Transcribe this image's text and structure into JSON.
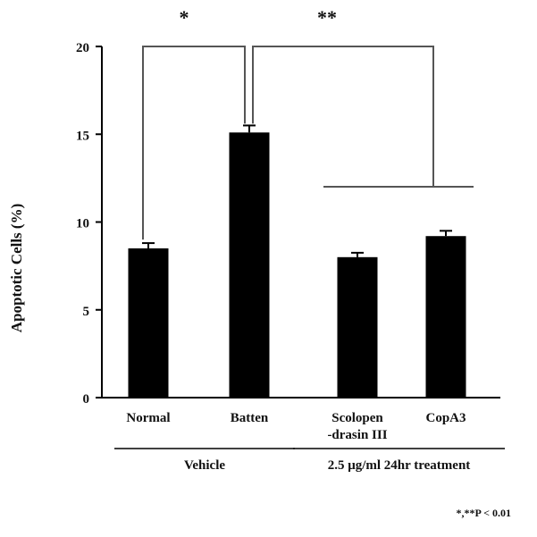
{
  "chart_data": {
    "type": "bar",
    "categories": [
      "Normal",
      "Batten",
      "Scolopen\n-drasin III",
      "CopA3"
    ],
    "values": [
      8.5,
      15.1,
      8.0,
      9.2
    ],
    "errors": [
      0.3,
      0.4,
      0.25,
      0.3
    ],
    "ylabel": "Apoptotic Cells (%)",
    "xlabel": "",
    "ylim": [
      0,
      20
    ],
    "yticks": [
      0,
      5,
      10,
      15,
      20
    ],
    "bar_color": "#000000",
    "group_labels": [
      {
        "label": "Vehicle",
        "categories": [
          "Normal",
          "Batten"
        ]
      },
      {
        "label": "2.5 μg/ml 24hr treatment",
        "categories": [
          "Scolopen\n-drasin III",
          "CopA3"
        ]
      }
    ],
    "significance": [
      {
        "label": "*",
        "between": [
          "Normal",
          "Batten"
        ]
      },
      {
        "label": "**",
        "between": [
          "Batten",
          "Scolopen\n-drasin III",
          "CopA3"
        ]
      }
    ],
    "footnote": "*,**P < 0.01",
    "grid": false,
    "legend": "none"
  }
}
